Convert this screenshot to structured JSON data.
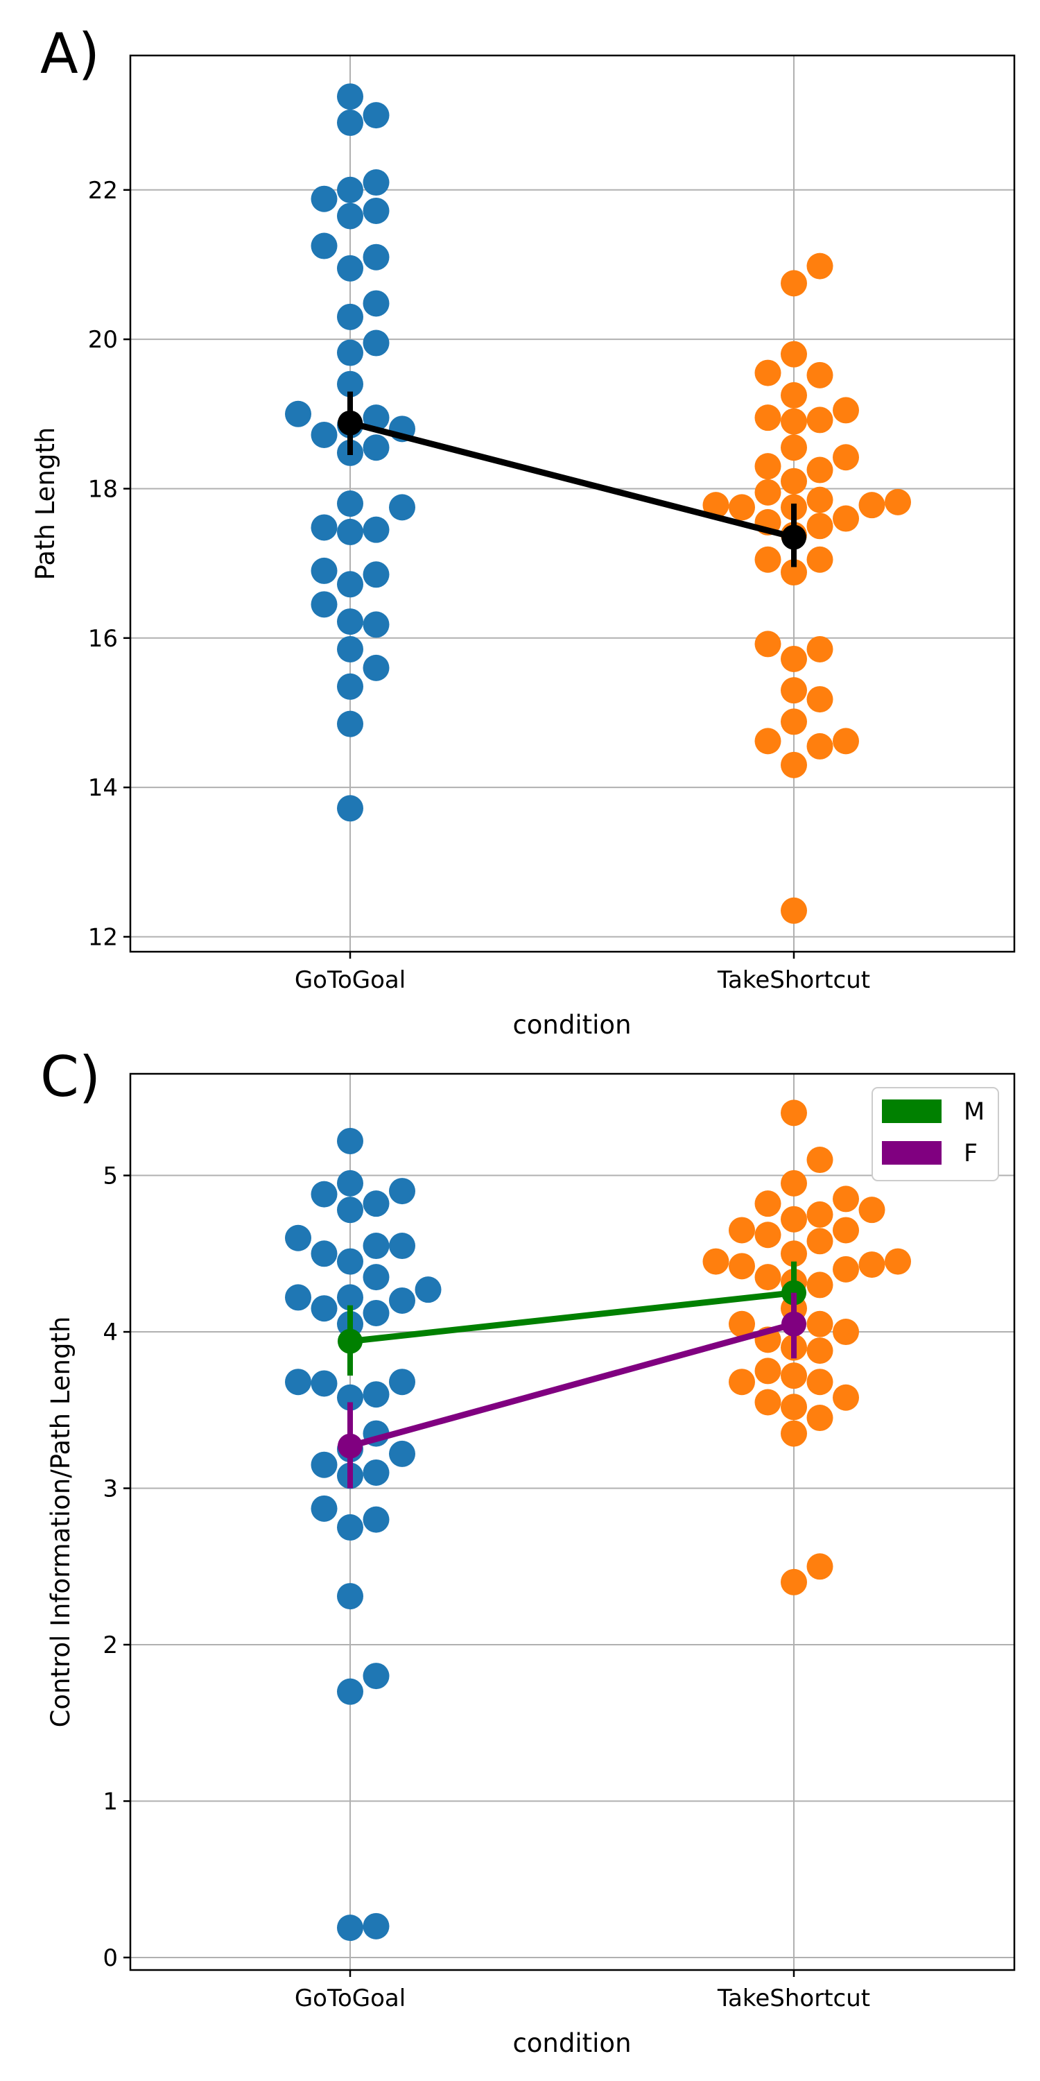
{
  "chart_data": [
    {
      "type": "scatter",
      "panel_label": "A)",
      "title": "",
      "xlabel": "condition",
      "ylabel": "Path Length",
      "categories": [
        "GoToGoal",
        "TakeShortcut"
      ],
      "ylim": [
        11.8,
        23.8
      ],
      "yticks": [
        12,
        14,
        16,
        18,
        20,
        22
      ],
      "grid": true,
      "point_colors": [
        "#1f77b4",
        "#ff7f0e"
      ],
      "points": [
        [
          23.25,
          23.0,
          22.9,
          22.1,
          22.0,
          21.88,
          21.72,
          21.65,
          21.25,
          21.1,
          20.95,
          20.48,
          20.3,
          19.95,
          19.82,
          19.4,
          19.0,
          18.95,
          18.85,
          18.8,
          18.72,
          18.55,
          18.48,
          17.8,
          17.75,
          17.48,
          17.45,
          17.42,
          16.9,
          16.85,
          16.72,
          16.45,
          16.22,
          16.18,
          15.85,
          15.6,
          15.35,
          14.85,
          13.72
        ],
        [
          20.98,
          20.75,
          19.8,
          19.55,
          19.52,
          19.25,
          19.05,
          18.95,
          18.92,
          18.9,
          18.55,
          18.42,
          18.3,
          18.25,
          18.1,
          17.95,
          17.85,
          17.82,
          17.78,
          17.78,
          17.75,
          17.75,
          17.6,
          17.55,
          17.5,
          17.38,
          17.05,
          17.05,
          16.88,
          15.92,
          15.85,
          15.72,
          15.3,
          15.18,
          14.88,
          14.62,
          14.62,
          14.55,
          14.3,
          12.35
        ]
      ],
      "series": [
        {
          "name": "",
          "color": "#000000",
          "means": [
            18.88,
            17.35
          ],
          "ci_low": [
            18.45,
            16.95
          ],
          "ci_high": [
            19.3,
            17.8
          ]
        }
      ]
    },
    {
      "type": "scatter",
      "panel_label": "C)",
      "title": "",
      "xlabel": "condition",
      "ylabel": "Control Information/Path Length",
      "categories": [
        "GoToGoal",
        "TakeShortcut"
      ],
      "ylim": [
        -0.08,
        5.65
      ],
      "yticks": [
        0,
        1,
        2,
        3,
        4,
        5
      ],
      "grid": true,
      "legend_position": "top-right",
      "point_colors": [
        "#1f77b4",
        "#ff7f0e"
      ],
      "points": [
        [
          5.22,
          4.95,
          4.9,
          4.88,
          4.82,
          4.78,
          4.6,
          4.55,
          4.55,
          4.5,
          4.45,
          4.35,
          4.27,
          4.22,
          4.22,
          4.2,
          4.15,
          4.12,
          4.05,
          3.68,
          3.68,
          3.67,
          3.6,
          3.58,
          3.35,
          3.25,
          3.22,
          3.15,
          3.1,
          3.08,
          2.87,
          2.8,
          2.75,
          2.31,
          1.8,
          1.7,
          0.2,
          0.19
        ],
        [
          5.4,
          5.1,
          4.95,
          4.85,
          4.82,
          4.78,
          4.75,
          4.72,
          4.65,
          4.65,
          4.62,
          4.58,
          4.5,
          4.45,
          4.45,
          4.43,
          4.42,
          4.4,
          4.35,
          4.32,
          4.3,
          4.15,
          4.05,
          4.05,
          4.0,
          3.95,
          3.9,
          3.88,
          3.75,
          3.72,
          3.68,
          3.68,
          3.58,
          3.55,
          3.52,
          3.45,
          3.35,
          2.5,
          2.4
        ]
      ],
      "series": [
        {
          "name": "M",
          "color": "#008000",
          "means": [
            3.94,
            4.25
          ],
          "ci_low": [
            3.72,
            4.05
          ],
          "ci_high": [
            4.17,
            4.45
          ]
        },
        {
          "name": "F",
          "color": "#800080",
          "means": [
            3.27,
            4.05
          ],
          "ci_low": [
            3.0,
            3.83
          ],
          "ci_high": [
            3.55,
            4.25
          ]
        }
      ]
    }
  ]
}
